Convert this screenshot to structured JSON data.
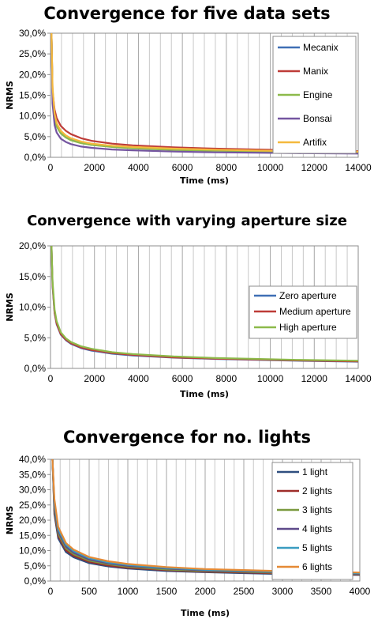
{
  "chart_data": [
    {
      "type": "line",
      "title": "Convergence for five data sets",
      "xlabel": "Time (ms)",
      "ylabel": "NRMS",
      "xlim": [
        0,
        15000
      ],
      "ylim": [
        0,
        30
      ],
      "x_ticks": [
        "0",
        "2000",
        "4000",
        "6000",
        "8000",
        "10000",
        "12000",
        "14000"
      ],
      "y_ticks": [
        "0,0%",
        "5,0%",
        "10,0%",
        "15,0%",
        "20,0%",
        "25,0%",
        "30,0%"
      ],
      "grid": true,
      "legend_position": "top-right",
      "x": [
        50,
        100,
        200,
        300,
        500,
        750,
        1000,
        1500,
        2000,
        3000,
        4000,
        6000,
        8000,
        10000,
        12000,
        15000
      ],
      "series": [
        {
          "name": "Mecanix",
          "color": "#3f6fb5",
          "values": [
            30,
            15,
            9.5,
            7.5,
            5.8,
            4.8,
            4.2,
            3.5,
            3.0,
            2.6,
            2.3,
            1.9,
            1.7,
            1.5,
            1.35,
            1.2
          ]
        },
        {
          "name": "Manix",
          "color": "#be3c38",
          "values": [
            30,
            16,
            11.5,
            9.5,
            7.6,
            6.4,
            5.6,
            4.6,
            4.0,
            3.3,
            2.9,
            2.4,
            2.1,
            1.9,
            1.7,
            1.5
          ]
        },
        {
          "name": "Engine",
          "color": "#8dba4a",
          "values": [
            30,
            14.5,
            9.5,
            7.5,
            5.8,
            4.8,
            4.1,
            3.4,
            3.0,
            2.5,
            2.2,
            1.8,
            1.6,
            1.45,
            1.3,
            1.15
          ]
        },
        {
          "name": "Bonsai",
          "color": "#7455a0",
          "values": [
            30,
            13,
            7.8,
            6.0,
            4.5,
            3.7,
            3.2,
            2.6,
            2.3,
            1.9,
            1.7,
            1.4,
            1.2,
            1.1,
            1.0,
            0.9
          ]
        },
        {
          "name": "Artifix",
          "color": "#f5b93d",
          "values": [
            30,
            17,
            10.5,
            8.3,
            6.4,
            5.3,
            4.6,
            3.8,
            3.3,
            2.8,
            2.5,
            2.1,
            1.85,
            1.65,
            1.5,
            1.35
          ]
        }
      ]
    },
    {
      "type": "line",
      "title": "Convergence with varying aperture size",
      "xlabel": "Time (ms)",
      "ylabel": "NRMS",
      "xlim": [
        0,
        15000
      ],
      "ylim": [
        0,
        20
      ],
      "x_ticks": [
        "0",
        "2000",
        "4000",
        "6000",
        "8000",
        "10000",
        "12000",
        "14000"
      ],
      "y_ticks": [
        "0,0%",
        "5,0%",
        "10,0%",
        "15,0%",
        "20,0%"
      ],
      "grid": true,
      "legend_position": "right",
      "x": [
        50,
        100,
        200,
        300,
        500,
        750,
        1000,
        1500,
        2000,
        3000,
        4000,
        6000,
        8000,
        10000,
        12000,
        15000
      ],
      "series": [
        {
          "name": "Zero aperture",
          "color": "#3f6fb5",
          "values": [
            20,
            13.5,
            9.0,
            7.2,
            5.5,
            4.6,
            4.0,
            3.3,
            2.9,
            2.4,
            2.1,
            1.75,
            1.55,
            1.4,
            1.25,
            1.1
          ]
        },
        {
          "name": "Medium aperture",
          "color": "#be3c38",
          "values": [
            20,
            13.7,
            9.1,
            7.3,
            5.6,
            4.7,
            4.1,
            3.4,
            3.0,
            2.5,
            2.2,
            1.8,
            1.6,
            1.45,
            1.3,
            1.15
          ]
        },
        {
          "name": "High aperture",
          "color": "#8dba4a",
          "values": [
            20,
            14.2,
            9.6,
            7.7,
            5.9,
            4.9,
            4.3,
            3.6,
            3.2,
            2.65,
            2.35,
            1.95,
            1.7,
            1.55,
            1.4,
            1.25
          ]
        }
      ]
    },
    {
      "type": "line",
      "title": "Convergence for no. lights",
      "xlabel": "Time (ms)",
      "ylabel": "NRMS",
      "xlim": [
        0,
        4000
      ],
      "ylim": [
        0,
        40
      ],
      "x_ticks": [
        "0",
        "500",
        "1000",
        "1500",
        "2000",
        "2500",
        "3000",
        "3500",
        "4000"
      ],
      "y_ticks": [
        "0,0%",
        "5,0%",
        "10,0%",
        "15,0%",
        "20,0%",
        "25,0%",
        "30,0%",
        "35,0%",
        "40,0%"
      ],
      "grid": true,
      "legend_position": "top-right",
      "x": [
        25,
        50,
        100,
        200,
        300,
        500,
        750,
        1000,
        1500,
        2000,
        2500,
        3000,
        3500,
        4000
      ],
      "series": [
        {
          "name": "1 light",
          "color": "#2f4f7f",
          "values": [
            40,
            22,
            14,
            9.5,
            7.8,
            5.9,
            4.8,
            4.1,
            3.3,
            2.9,
            2.6,
            2.3,
            2.15,
            2.0
          ]
        },
        {
          "name": "2 lights",
          "color": "#9e2d2a",
          "values": [
            40,
            23,
            14.8,
            10.1,
            8.3,
            6.3,
            5.1,
            4.4,
            3.6,
            3.1,
            2.8,
            2.5,
            2.3,
            2.15
          ]
        },
        {
          "name": "3 lights",
          "color": "#7a9a3f",
          "values": [
            40,
            24,
            15.5,
            10.7,
            8.8,
            6.7,
            5.5,
            4.7,
            3.8,
            3.3,
            3.0,
            2.7,
            2.5,
            2.3
          ]
        },
        {
          "name": "4 lights",
          "color": "#5e4a8a",
          "values": [
            40,
            25,
            16.2,
            11.3,
            9.3,
            7.1,
            5.8,
            5.0,
            4.1,
            3.5,
            3.2,
            2.9,
            2.65,
            2.45
          ]
        },
        {
          "name": "5 lights",
          "color": "#3a9cc0",
          "values": [
            40,
            26,
            17,
            11.9,
            9.8,
            7.5,
            6.1,
            5.3,
            4.3,
            3.7,
            3.4,
            3.05,
            2.8,
            2.6
          ]
        },
        {
          "name": "6 lights",
          "color": "#e58a35",
          "values": [
            40,
            27,
            17.8,
            12.5,
            10.3,
            7.9,
            6.5,
            5.6,
            4.6,
            3.95,
            3.6,
            3.25,
            3.0,
            2.8
          ]
        }
      ]
    }
  ]
}
